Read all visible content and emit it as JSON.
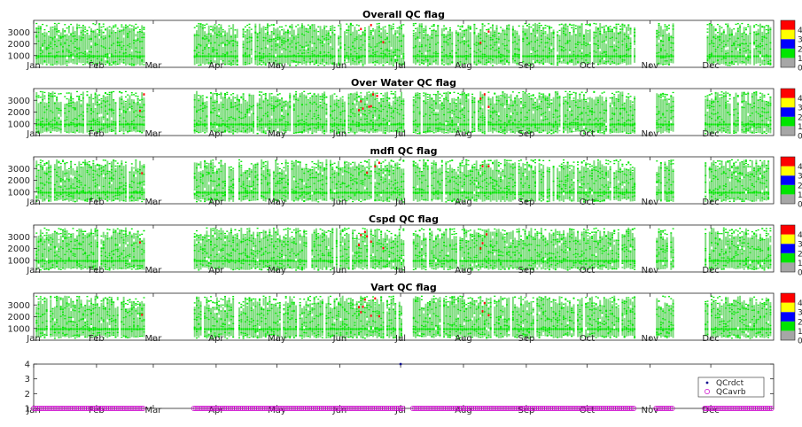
{
  "chart_data": [
    {
      "type": "heatmap",
      "title": "Overall QC flag",
      "x_tick_labels": [
        "Jan",
        "Feb",
        "Mar",
        "Apr",
        "May",
        "Jun",
        "Jul",
        "Aug",
        "Sep",
        "Oct",
        "Nov",
        "Dec"
      ],
      "y_tick_labels": [
        "1000",
        "2000",
        "3000"
      ],
      "ylim": [
        0,
        4000
      ],
      "colorbar": {
        "ticks": [
          "0",
          "1",
          "2",
          "3",
          "4"
        ],
        "colors": [
          "#a6a6a6",
          "#00e600",
          "#0000ff",
          "#ffff00",
          "#ff0000"
        ]
      },
      "no_data_ranges": [
        [
          "Feb 25",
          "Mar 20"
        ],
        [
          "Jul 3",
          "Jul 6"
        ],
        [
          "Oct 25",
          "Nov 3"
        ],
        [
          "Nov 13",
          "Nov 27"
        ]
      ],
      "dominant_flag": 1
    },
    {
      "type": "heatmap",
      "title": "Over Water QC flag",
      "x_tick_labels": [
        "Jan",
        "Feb",
        "Mar",
        "Apr",
        "May",
        "Jun",
        "Jul",
        "Aug",
        "Sep",
        "Oct",
        "Nov",
        "Dec"
      ],
      "y_tick_labels": [
        "1000",
        "2000",
        "3000"
      ],
      "ylim": [
        0,
        4000
      ],
      "colorbar": {
        "ticks": [
          "0",
          "1",
          "2",
          "3",
          "4"
        ],
        "colors": [
          "#a6a6a6",
          "#00e600",
          "#0000ff",
          "#ffff00",
          "#ff0000"
        ]
      },
      "no_data_ranges": [
        [
          "Feb 25",
          "Mar 20"
        ],
        [
          "Jul 3",
          "Jul 6"
        ],
        [
          "Oct 25",
          "Nov 3"
        ],
        [
          "Nov 13",
          "Nov 27"
        ]
      ],
      "dominant_flag": 1
    },
    {
      "type": "heatmap",
      "title": "mdfl QC flag",
      "x_tick_labels": [
        "Jan",
        "Feb",
        "Mar",
        "Apr",
        "May",
        "Jun",
        "Jul",
        "Aug",
        "Sep",
        "Oct",
        "Nov",
        "Dec"
      ],
      "y_tick_labels": [
        "1000",
        "2000",
        "3000"
      ],
      "ylim": [
        0,
        4000
      ],
      "colorbar": {
        "ticks": [
          "0",
          "1",
          "2",
          "3",
          "4"
        ],
        "colors": [
          "#a6a6a6",
          "#00e600",
          "#0000ff",
          "#ffff00",
          "#ff0000"
        ]
      },
      "no_data_ranges": [
        [
          "Feb 25",
          "Mar 20"
        ],
        [
          "Jul 3",
          "Jul 6"
        ],
        [
          "Oct 25",
          "Nov 3"
        ],
        [
          "Nov 13",
          "Nov 27"
        ]
      ],
      "dominant_flag": 1
    },
    {
      "type": "heatmap",
      "title": "Cspd QC flag",
      "x_tick_labels": [
        "Jan",
        "Feb",
        "Mar",
        "Apr",
        "May",
        "Jun",
        "Jul",
        "Aug",
        "Sep",
        "Oct",
        "Nov",
        "Dec"
      ],
      "y_tick_labels": [
        "1000",
        "2000",
        "3000"
      ],
      "ylim": [
        0,
        4000
      ],
      "colorbar": {
        "ticks": [
          "0",
          "1",
          "2",
          "3",
          "4"
        ],
        "colors": [
          "#a6a6a6",
          "#00e600",
          "#0000ff",
          "#ffff00",
          "#ff0000"
        ]
      },
      "no_data_ranges": [
        [
          "Feb 25",
          "Mar 20"
        ],
        [
          "Jul 3",
          "Jul 6"
        ],
        [
          "Oct 25",
          "Nov 3"
        ],
        [
          "Nov 13",
          "Nov 27"
        ]
      ],
      "dominant_flag": 1
    },
    {
      "type": "heatmap",
      "title": "Vart QC flag",
      "x_tick_labels": [
        "Jan",
        "Feb",
        "Mar",
        "Apr",
        "May",
        "Jun",
        "Jul",
        "Aug",
        "Sep",
        "Oct",
        "Nov",
        "Dec"
      ],
      "y_tick_labels": [
        "1000",
        "2000",
        "3000"
      ],
      "ylim": [
        0,
        4000
      ],
      "colorbar": {
        "ticks": [
          "0",
          "1",
          "2",
          "3",
          "4"
        ],
        "colors": [
          "#a6a6a6",
          "#00e600",
          "#0000ff",
          "#ffff00",
          "#ff0000"
        ]
      },
      "no_data_ranges": [
        [
          "Feb 25",
          "Mar 20"
        ],
        [
          "Jul 3",
          "Jul 6"
        ],
        [
          "Oct 25",
          "Nov 3"
        ],
        [
          "Nov 13",
          "Nov 27"
        ]
      ],
      "dominant_flag": 1
    },
    {
      "type": "scatter",
      "title": "",
      "x_tick_labels": [
        "Jan",
        "Feb",
        "Mar",
        "Apr",
        "May",
        "Jun",
        "Jul",
        "Aug",
        "Sep",
        "Oct",
        "Nov",
        "Dec"
      ],
      "y_tick_labels": [
        "1",
        "2",
        "3",
        "4"
      ],
      "ylim": [
        1,
        4
      ],
      "legend_position": "right",
      "series": [
        {
          "name": "QCrdct",
          "marker": "dot",
          "color": "#00008b",
          "points": [
            {
              "x": "Jul 1",
              "y": 4
            }
          ]
        },
        {
          "name": "QCavrb",
          "marker": "circle",
          "color": "#cc00cc",
          "y_constant": 1,
          "x_ranges": [
            [
              "Jan 1",
              "Feb 24"
            ],
            [
              "Mar 21",
              "Jul 2"
            ],
            [
              "Jul 7",
              "Oct 24"
            ],
            [
              "Nov 4",
              "Nov 12"
            ],
            [
              "Nov 28",
              "Dec 31"
            ]
          ]
        }
      ]
    }
  ]
}
